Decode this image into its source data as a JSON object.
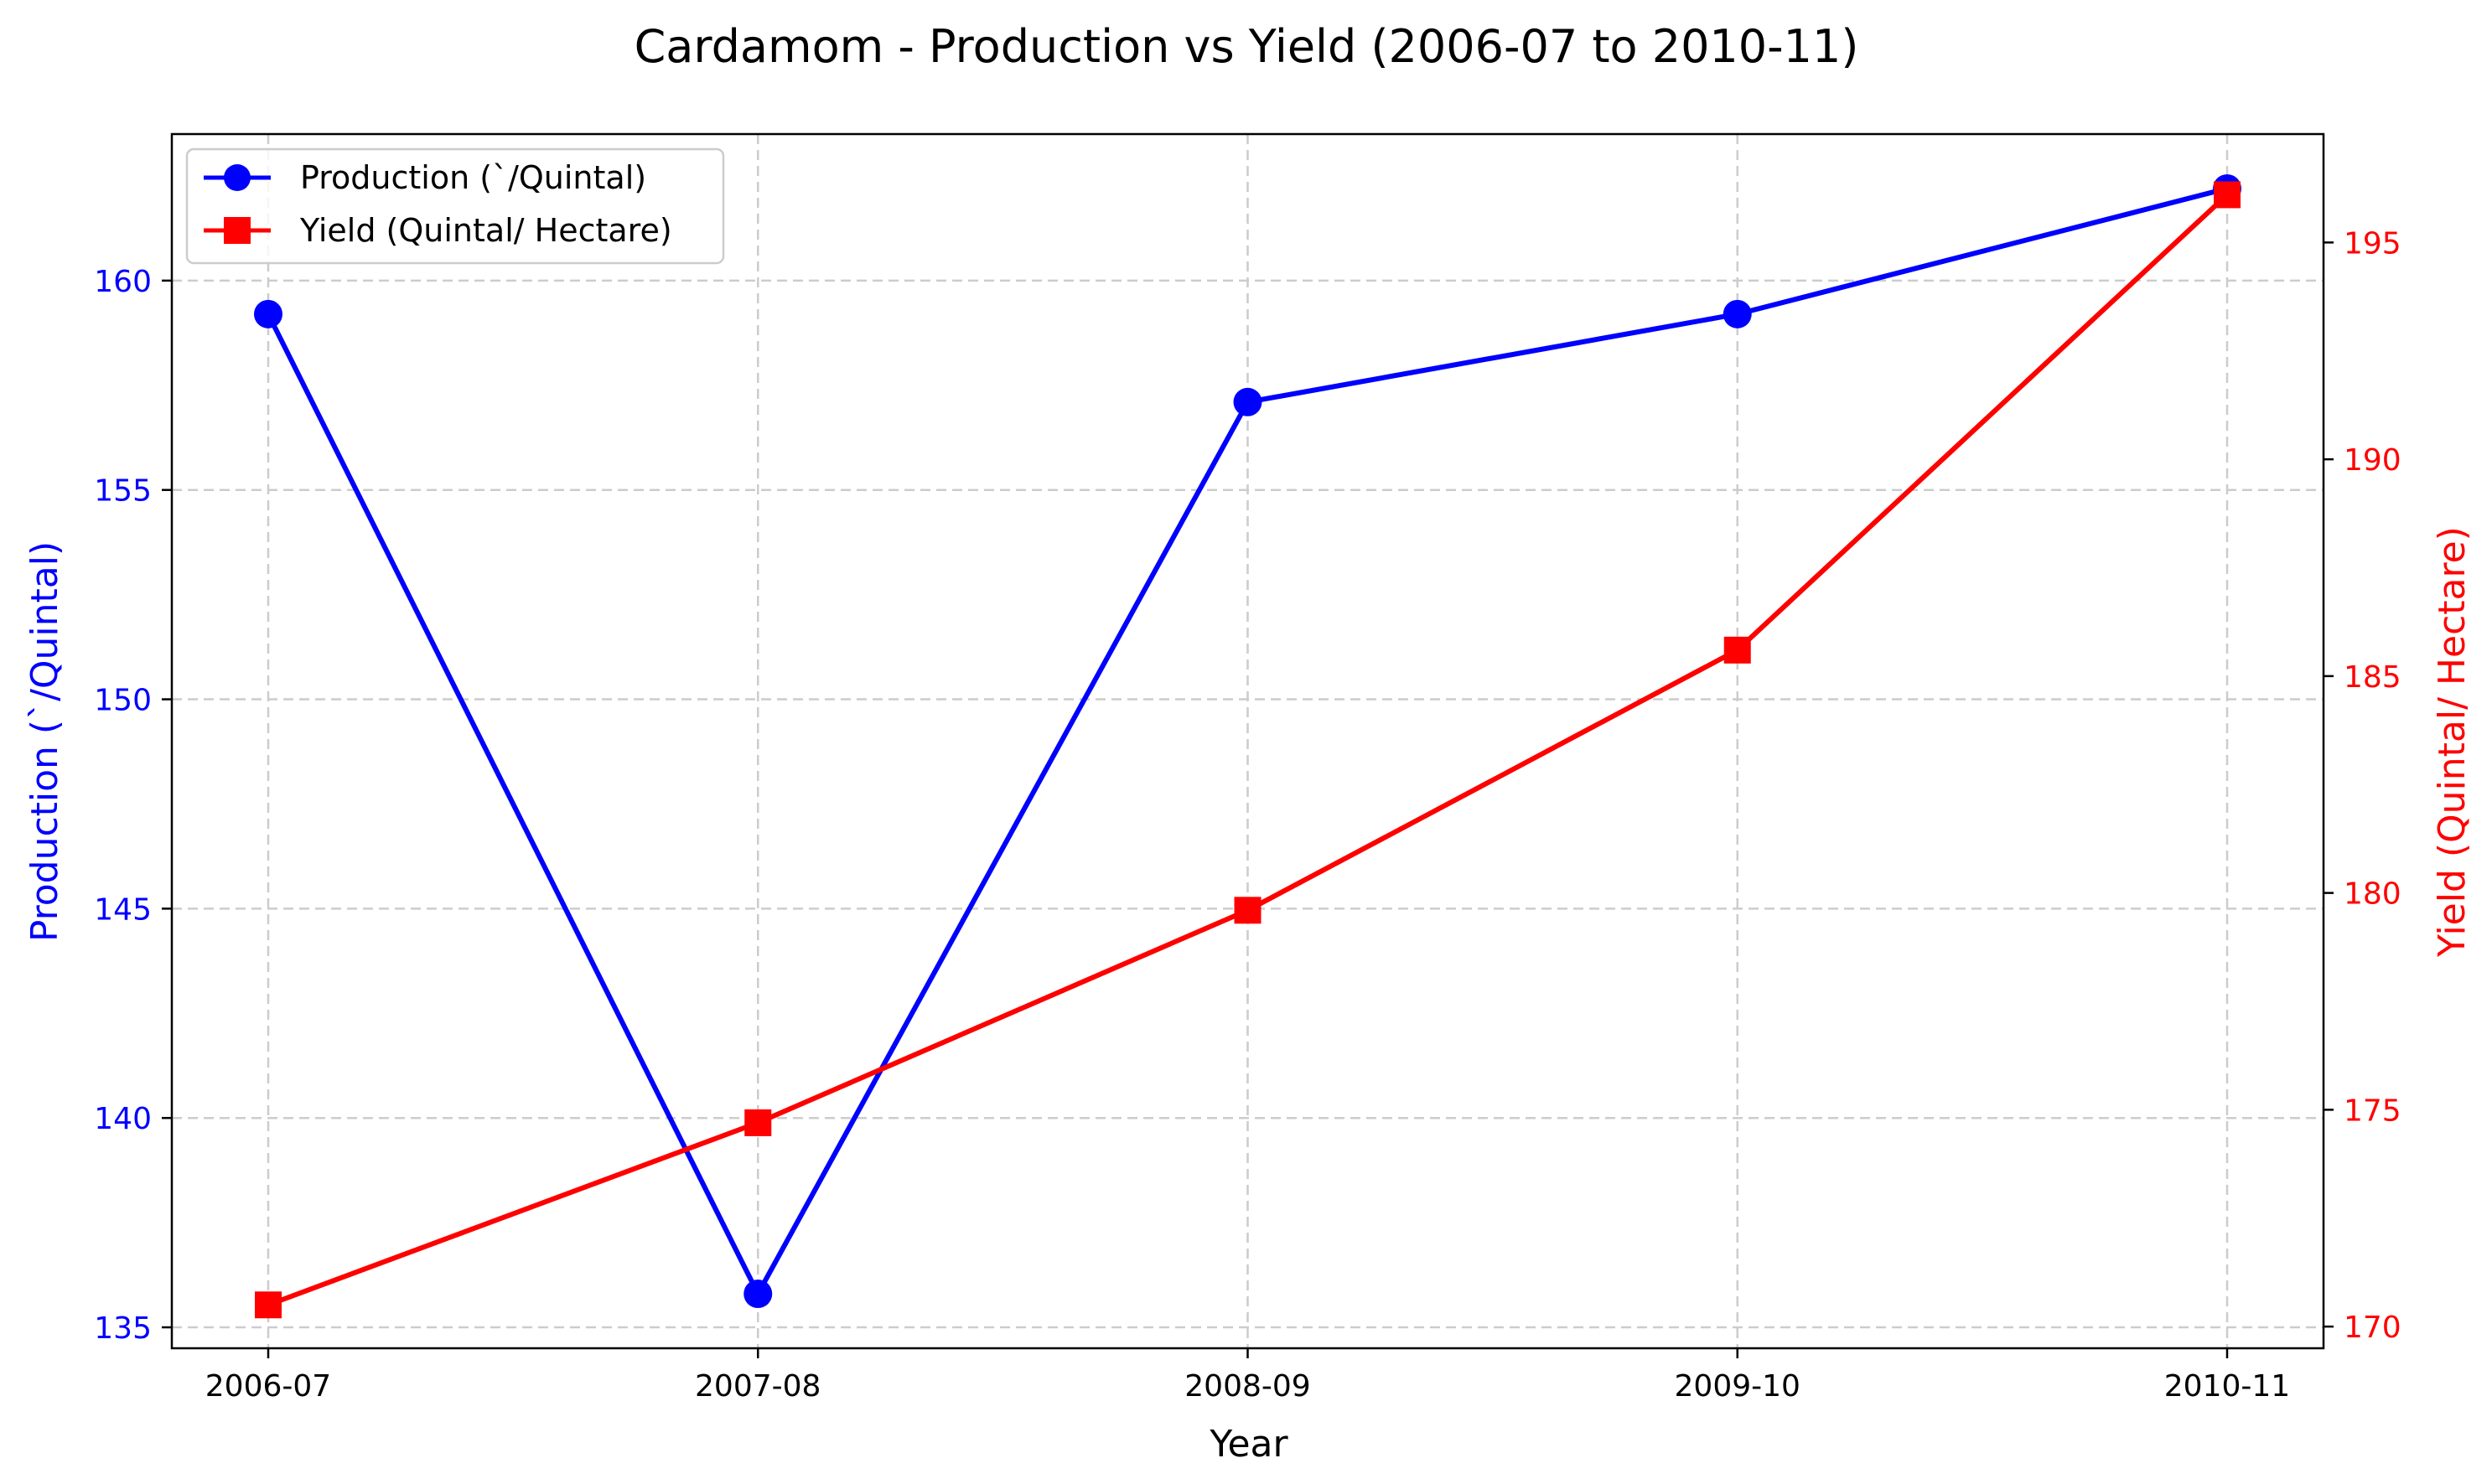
{
  "chart_data": {
    "type": "line",
    "title": "Cardamom  - Production vs Yield (2006-07 to 2010-11)",
    "xlabel": "Year",
    "ylabel_left": "Production (`/Quintal)",
    "ylabel_right": "Yield (Quintal/ Hectare)",
    "categories": [
      "2006-07",
      "2007-08",
      "2008-09",
      "2009-10",
      "2010-11"
    ],
    "ylim_left": [
      134.5,
      163.5
    ],
    "ylim_right": [
      169.5,
      197.5
    ],
    "yticks_left": [
      "135",
      "140",
      "145",
      "150",
      "155",
      "160"
    ],
    "yticks_right": [
      "170",
      "175",
      "180",
      "185",
      "190",
      "195"
    ],
    "grid": true,
    "legend_position": "upper-left",
    "series": [
      {
        "name": "Production (`/Quintal)",
        "axis": "left",
        "marker": "circle",
        "color": "#0000ff",
        "values": [
          159.2,
          135.8,
          157.1,
          159.2,
          162.2
        ]
      },
      {
        "name": "Yield (Quintal/ Hectare)",
        "axis": "right",
        "marker": "square",
        "color": "#ff0000",
        "values": [
          170.5,
          174.7,
          179.6,
          185.6,
          196.1
        ]
      }
    ]
  }
}
